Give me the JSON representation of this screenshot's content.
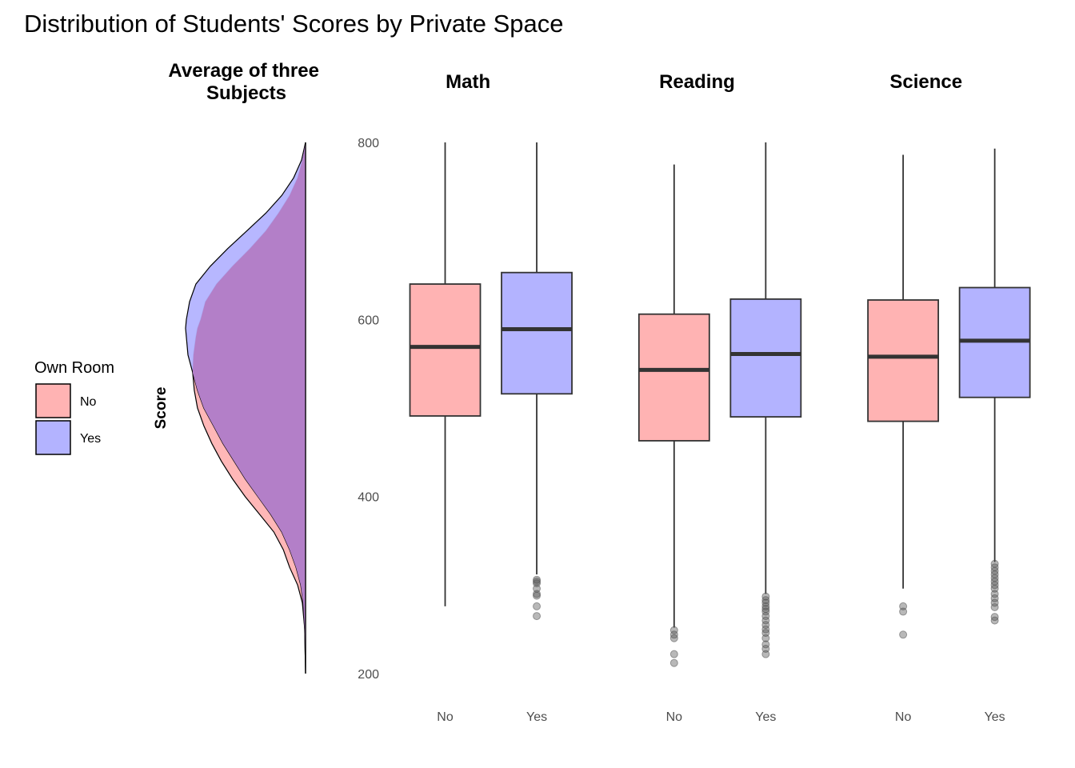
{
  "colors": {
    "no": "#ffb3b3",
    "yes": "#b3b3ff",
    "overlap": "#b37fc8",
    "line": "#333333",
    "outlier": "#4d4d4d"
  },
  "chart_data": [
    {
      "type": "density",
      "title": "Distribution of Students' Scores by Private Space",
      "panel_title": "Average of three Subjects",
      "ylabel": "Score",
      "ylim": [
        200,
        800
      ],
      "orientation": "horizontal-left",
      "legend": {
        "title": "Own Room",
        "position": "left",
        "entries": [
          {
            "label": "No",
            "color": "#ffb3b3"
          },
          {
            "label": "Yes",
            "color": "#b3b3ff"
          }
        ]
      },
      "series": [
        {
          "name": "No",
          "y": [
            200,
            250,
            280,
            300,
            320,
            340,
            360,
            380,
            400,
            420,
            440,
            460,
            480,
            500,
            520,
            540,
            560,
            580,
            590,
            600,
            620,
            640,
            660,
            680,
            700,
            720,
            740,
            760,
            780,
            800
          ],
          "density": [
            0.0,
            0.001,
            0.004,
            0.01,
            0.02,
            0.028,
            0.04,
            0.058,
            0.076,
            0.092,
            0.106,
            0.118,
            0.128,
            0.136,
            0.14,
            0.142,
            0.141,
            0.138,
            0.136,
            0.132,
            0.126,
            0.112,
            0.092,
            0.07,
            0.05,
            0.034,
            0.02,
            0.01,
            0.004,
            0.0
          ]
        },
        {
          "name": "Yes",
          "y": [
            200,
            250,
            280,
            300,
            320,
            340,
            360,
            380,
            400,
            420,
            440,
            460,
            480,
            500,
            520,
            540,
            560,
            580,
            590,
            600,
            620,
            640,
            660,
            680,
            700,
            720,
            740,
            760,
            780,
            800
          ],
          "density": [
            0.0,
            0.001,
            0.003,
            0.006,
            0.012,
            0.02,
            0.03,
            0.044,
            0.06,
            0.076,
            0.09,
            0.104,
            0.116,
            0.128,
            0.136,
            0.142,
            0.148,
            0.15,
            0.151,
            0.15,
            0.146,
            0.138,
            0.12,
            0.098,
            0.074,
            0.05,
            0.03,
            0.015,
            0.005,
            0.0
          ]
        }
      ]
    },
    {
      "type": "box",
      "panels": [
        {
          "title": "Math",
          "boxes": [
            {
              "category": "No",
              "min": 276,
              "q1": 491,
              "median": 569,
              "q3": 640,
              "max": 800,
              "outliers": []
            },
            {
              "category": "Yes",
              "min": 312,
              "q1": 516,
              "median": 589,
              "q3": 653,
              "max": 800,
              "outliers": [
                306,
                304,
                302,
                296,
                290,
                288,
                276,
                265
              ]
            }
          ]
        },
        {
          "title": "Reading",
          "boxes": [
            {
              "category": "No",
              "min": 252,
              "q1": 463,
              "median": 543,
              "q3": 606,
              "max": 775,
              "outliers": [
                249,
                244,
                240,
                222,
                212
              ]
            },
            {
              "category": "Yes",
              "min": 290,
              "q1": 490,
              "median": 561,
              "q3": 623,
              "max": 800,
              "outliers": [
                287,
                283,
                280,
                276,
                273,
                270,
                265,
                260,
                255,
                250,
                246,
                240,
                233,
                228,
                222
              ]
            }
          ]
        },
        {
          "title": "Science",
          "boxes": [
            {
              "category": "No",
              "min": 296,
              "q1": 485,
              "median": 558,
              "q3": 622,
              "max": 786,
              "outliers": [
                276,
                270,
                244
              ]
            },
            {
              "category": "Yes",
              "min": 326,
              "q1": 512,
              "median": 576,
              "q3": 636,
              "max": 793,
              "outliers": [
                324,
                320,
                316,
                312,
                308,
                304,
                300,
                296,
                290,
                285,
                280,
                275,
                264,
                260
              ]
            }
          ]
        }
      ],
      "y_ticks": [
        200,
        400,
        600,
        800
      ],
      "ylim": [
        200,
        800
      ]
    }
  ]
}
